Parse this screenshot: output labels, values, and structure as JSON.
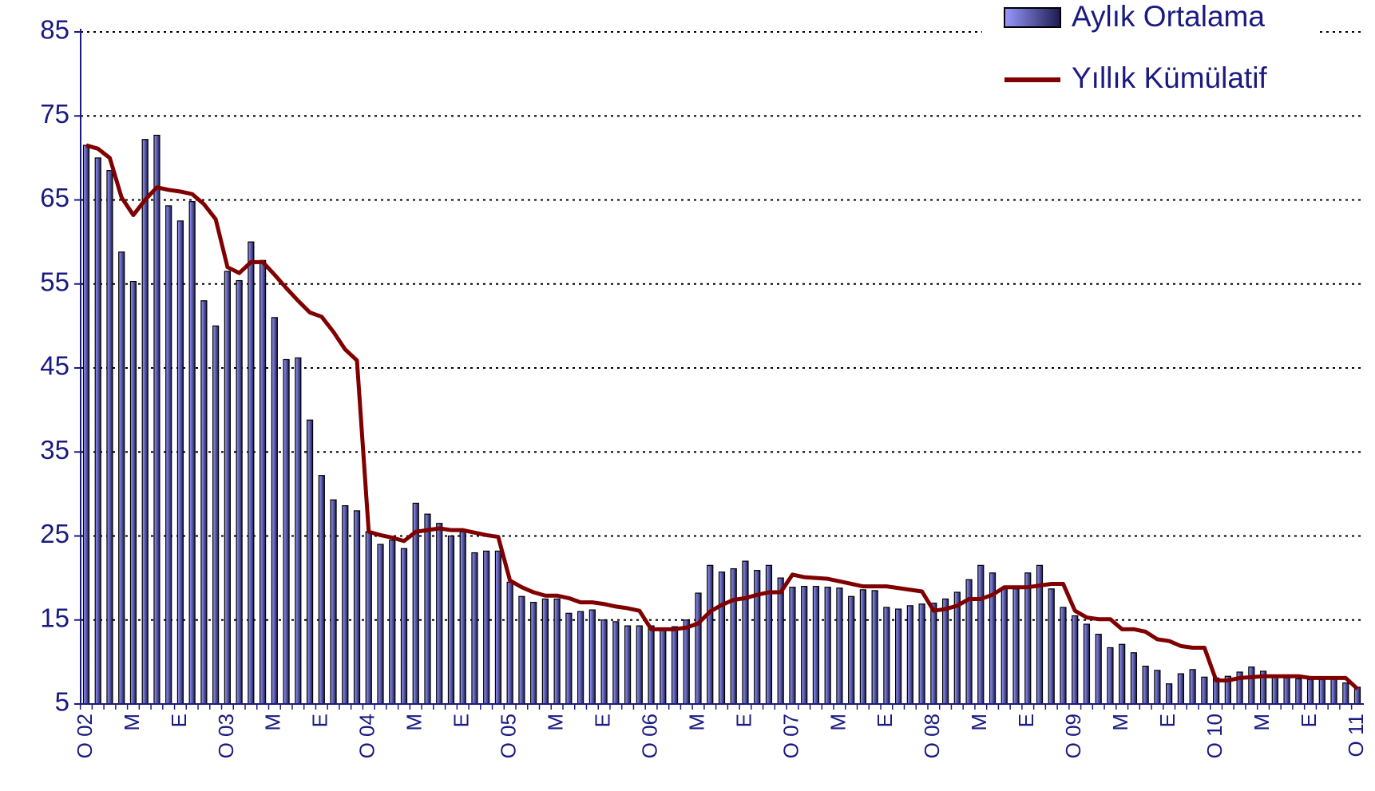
{
  "chart_data": {
    "type": "bar-line",
    "categories": [
      "O 02",
      null,
      null,
      null,
      "M",
      null,
      null,
      null,
      "E",
      null,
      null,
      null,
      "O 03",
      null,
      null,
      null,
      "M",
      null,
      null,
      null,
      "E",
      null,
      null,
      null,
      "O 04",
      null,
      null,
      null,
      "M",
      null,
      null,
      null,
      "E",
      null,
      null,
      null,
      "O 05",
      null,
      null,
      null,
      "M",
      null,
      null,
      null,
      "E",
      null,
      null,
      null,
      "O 06",
      null,
      null,
      null,
      "M",
      null,
      null,
      null,
      "E",
      null,
      null,
      null,
      "O 07",
      null,
      null,
      null,
      "M",
      null,
      null,
      null,
      "E",
      null,
      null,
      null,
      "O 08",
      null,
      null,
      null,
      "M",
      null,
      null,
      null,
      "E",
      null,
      null,
      null,
      "O 09",
      null,
      null,
      null,
      "M",
      null,
      null,
      null,
      "E",
      null,
      null,
      null,
      "O 10",
      null,
      null,
      null,
      "M",
      null,
      null,
      null,
      "E",
      null,
      null,
      null,
      "O 11"
    ],
    "series": [
      {
        "name": "Aylık Ortalama",
        "kind": "bar",
        "color": "#9999ff",
        "values": [
          71.5,
          70,
          68.5,
          58.8,
          55.3,
          72.2,
          72.7,
          64.3,
          62.5,
          64.8,
          53,
          50,
          56.5,
          55.4,
          60,
          57.8,
          51,
          46,
          46.2,
          38.8,
          32.2,
          29.3,
          28.6,
          28,
          25.5,
          24,
          24.5,
          23.5,
          28.9,
          27.6,
          26.5,
          25,
          25.5,
          23,
          23.2,
          23.2,
          19.5,
          17.8,
          17.1,
          17.5,
          17.5,
          15.8,
          16,
          16.2,
          15,
          14.8,
          14.3,
          14.3,
          14.3,
          14,
          14.2,
          15,
          18.2,
          21.5,
          20.7,
          21.1,
          22,
          20.9,
          21.5,
          20,
          18.9,
          19,
          19,
          18.9,
          18.8,
          17.8,
          18.6,
          18.5,
          16.5,
          16.3,
          16.7,
          16.9,
          17,
          17.5,
          18.3,
          19.8,
          21.5,
          20.6,
          18.8,
          18.7,
          20.6,
          21.5,
          18.7,
          16.5,
          15.5,
          14.5,
          13.3,
          11.7,
          12.1,
          11.1,
          9.5,
          9,
          7.4,
          8.6,
          9.1,
          8.2,
          8.1,
          8.3,
          8.8,
          9.4,
          8.9,
          8.3,
          8.1,
          8,
          7.9,
          7.9,
          8,
          7.5,
          7
        ]
      },
      {
        "name": "Yıllık Kümülatif",
        "kind": "line",
        "color": "#800000",
        "values": [
          71.5,
          71.1,
          70,
          65.3,
          63.2,
          65,
          66.5,
          66.2,
          66,
          65.7,
          64.5,
          62.7,
          57,
          56.3,
          57.6,
          57.6,
          56.1,
          54.5,
          53,
          51.6,
          51.1,
          49.3,
          47.2,
          45.9,
          25.5,
          25.1,
          24.8,
          24.4,
          25.5,
          25.7,
          25.9,
          25.7,
          25.7,
          25.4,
          25.1,
          24.9,
          19.7,
          18.9,
          18.3,
          17.9,
          17.9,
          17.6,
          17.1,
          17.1,
          16.9,
          16.6,
          16.4,
          16.1,
          13.9,
          13.9,
          13.9,
          14.1,
          14.6,
          16,
          16.8,
          17.4,
          17.6,
          18,
          18.3,
          18.3,
          20.4,
          20.1,
          20,
          19.9,
          19.6,
          19.3,
          19,
          19,
          19,
          18.8,
          18.6,
          18.4,
          16.1,
          16.3,
          16.7,
          17.5,
          17.5,
          18,
          18.9,
          18.9,
          18.9,
          19.1,
          19.3,
          19.3,
          16.1,
          15.3,
          15.1,
          15.1,
          13.9,
          13.9,
          13.6,
          12.7,
          12.5,
          11.9,
          11.7,
          11.7,
          7.8,
          7.8,
          8.1,
          8.2,
          8.3,
          8.3,
          8.3,
          8.3,
          8.1,
          8.1,
          8.1,
          8.1,
          6.8
        ]
      }
    ],
    "ylim": [
      5,
      85
    ],
    "yticks": [
      5,
      15,
      25,
      35,
      45,
      55,
      65,
      75,
      85
    ],
    "grid": true,
    "legend": "top-right"
  }
}
